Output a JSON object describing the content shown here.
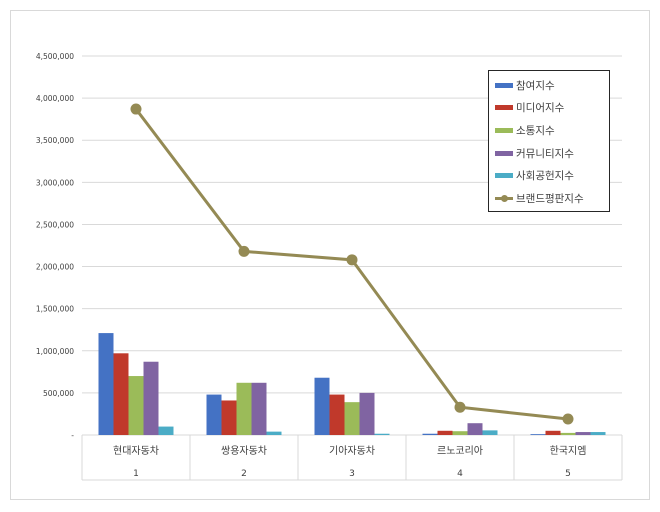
{
  "chart_data": {
    "type": "bar",
    "y_ticks": [
      "-",
      "500,000",
      "1,000,000",
      "1,500,000",
      "2,000,000",
      "2,500,000",
      "3,000,000",
      "3,500,000",
      "4,000,000",
      "4,500,000"
    ],
    "ylim": [
      0,
      4500000
    ],
    "categories": [
      "현대자동차",
      "쌍용자동차",
      "기아자동차",
      "르노코리아",
      "한국지엠"
    ],
    "category_index": [
      "1",
      "2",
      "3",
      "4",
      "5"
    ],
    "grid": true,
    "legend_position": "top-right",
    "series": [
      {
        "name": "참여지수",
        "kind": "bar",
        "color": "#4472c4",
        "values": [
          1210000,
          480000,
          680000,
          15000,
          10000
        ]
      },
      {
        "name": "미디어지수",
        "kind": "bar",
        "color": "#c0392b",
        "values": [
          970000,
          410000,
          480000,
          50000,
          50000
        ]
      },
      {
        "name": "소통지수",
        "kind": "bar",
        "color": "#9bbb59",
        "values": [
          700000,
          620000,
          390000,
          45000,
          25000
        ]
      },
      {
        "name": "커뮤니티지수",
        "kind": "bar",
        "color": "#8064a2",
        "values": [
          870000,
          620000,
          500000,
          140000,
          35000
        ]
      },
      {
        "name": "사회공헌지수",
        "kind": "bar",
        "color": "#4bacc6",
        "values": [
          100000,
          40000,
          15000,
          55000,
          35000
        ]
      },
      {
        "name": "브랜드평판지수",
        "kind": "line",
        "color": "#948a54",
        "values": [
          3870000,
          2180000,
          2080000,
          330000,
          190000
        ]
      }
    ]
  }
}
